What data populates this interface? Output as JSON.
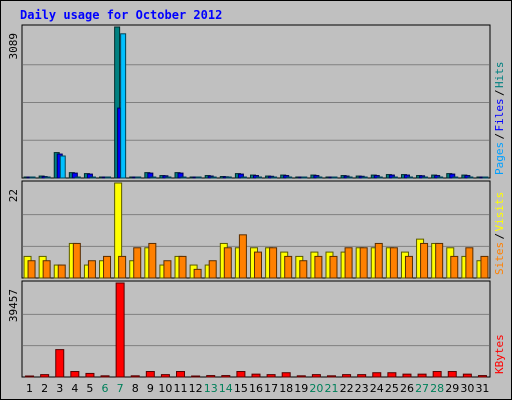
{
  "title": "Daily usage for October 2012",
  "chart_data": [
    {
      "type": "bar",
      "panel": "hits_files_pages",
      "ylim": [
        0,
        3089
      ],
      "ylabel": "3089",
      "legend": [
        {
          "name": "Pages",
          "color": "#00a0ff"
        },
        {
          "name": "Files",
          "color": "#0000ff"
        },
        {
          "name": "Hits",
          "color": "#008080"
        }
      ],
      "categories": [
        "1",
        "2",
        "3",
        "4",
        "5",
        "6",
        "7",
        "8",
        "9",
        "10",
        "11",
        "12",
        "13",
        "14",
        "15",
        "16",
        "17",
        "18",
        "19",
        "20",
        "21",
        "22",
        "23",
        "24",
        "25",
        "26",
        "27",
        "28",
        "29",
        "30",
        "31"
      ],
      "series": [
        {
          "name": "Hits",
          "color": "#008080",
          "values": [
            20,
            40,
            520,
            110,
            90,
            10,
            3089,
            10,
            110,
            50,
            110,
            20,
            50,
            30,
            90,
            60,
            40,
            60,
            20,
            60,
            20,
            50,
            40,
            60,
            70,
            70,
            50,
            60,
            90,
            60,
            20
          ]
        },
        {
          "name": "Files",
          "color": "#0000ff",
          "values": [
            20,
            30,
            490,
            100,
            80,
            10,
            1430,
            10,
            100,
            45,
            100,
            20,
            40,
            25,
            80,
            50,
            35,
            50,
            15,
            50,
            15,
            40,
            35,
            50,
            60,
            60,
            45,
            50,
            80,
            50,
            20
          ]
        },
        {
          "name": "Pages",
          "color": "#00c0ff",
          "values": [
            5,
            10,
            450,
            10,
            10,
            5,
            2950,
            5,
            10,
            5,
            10,
            5,
            20,
            15,
            10,
            10,
            10,
            10,
            5,
            10,
            5,
            10,
            10,
            10,
            10,
            10,
            10,
            10,
            10,
            10,
            5
          ]
        }
      ]
    },
    {
      "type": "bar",
      "panel": "visits_sites",
      "ylim": [
        0,
        22
      ],
      "ylabel": "22",
      "legend": [
        {
          "name": "Sites",
          "color": "#ff8000"
        },
        {
          "name": "Visits",
          "color": "#ffff00"
        }
      ],
      "categories": [
        "1",
        "2",
        "3",
        "4",
        "5",
        "6",
        "7",
        "8",
        "9",
        "10",
        "11",
        "12",
        "13",
        "14",
        "15",
        "16",
        "17",
        "18",
        "19",
        "20",
        "21",
        "22",
        "23",
        "24",
        "25",
        "26",
        "27",
        "28",
        "29",
        "30",
        "31"
      ],
      "series": [
        {
          "name": "Visits",
          "color": "#ffff00",
          "values": [
            5,
            5,
            3,
            8,
            3,
            4,
            22,
            4,
            7,
            3,
            5,
            3,
            3,
            8,
            7,
            7,
            7,
            6,
            5,
            6,
            6,
            6,
            7,
            7,
            7,
            6,
            9,
            8,
            7,
            5,
            4
          ]
        },
        {
          "name": "Sites",
          "color": "#ff8000",
          "values": [
            4,
            4,
            3,
            8,
            4,
            5,
            5,
            7,
            8,
            4,
            5,
            2,
            4,
            7,
            10,
            6,
            7,
            5,
            4,
            5,
            5,
            7,
            7,
            8,
            7,
            5,
            8,
            8,
            5,
            7,
            5
          ]
        }
      ]
    },
    {
      "type": "bar",
      "panel": "kbytes",
      "ylim": [
        0,
        39457
      ],
      "ylabel": "39457",
      "legend": [
        {
          "name": "KBytes",
          "color": "#ff0000"
        }
      ],
      "categories": [
        "1",
        "2",
        "3",
        "4",
        "5",
        "6",
        "7",
        "8",
        "9",
        "10",
        "11",
        "12",
        "13",
        "14",
        "15",
        "16",
        "17",
        "18",
        "19",
        "20",
        "21",
        "22",
        "23",
        "24",
        "25",
        "26",
        "27",
        "28",
        "29",
        "30",
        "31"
      ],
      "series": [
        {
          "name": "KBytes",
          "color": "#ff0000",
          "values": [
            300,
            1000,
            11500,
            2300,
            1500,
            500,
            39457,
            500,
            2300,
            1000,
            2300,
            300,
            600,
            600,
            2300,
            1200,
            1000,
            1800,
            500,
            1000,
            500,
            1000,
            1000,
            1800,
            1800,
            1200,
            1200,
            2300,
            2300,
            1200,
            600
          ]
        }
      ]
    }
  ],
  "x_axis": {
    "weekend_days": [
      "6",
      "7",
      "13",
      "14",
      "20",
      "21",
      "27",
      "28"
    ],
    "weekday_color": "#000000",
    "weekend_color": "#00805a"
  }
}
